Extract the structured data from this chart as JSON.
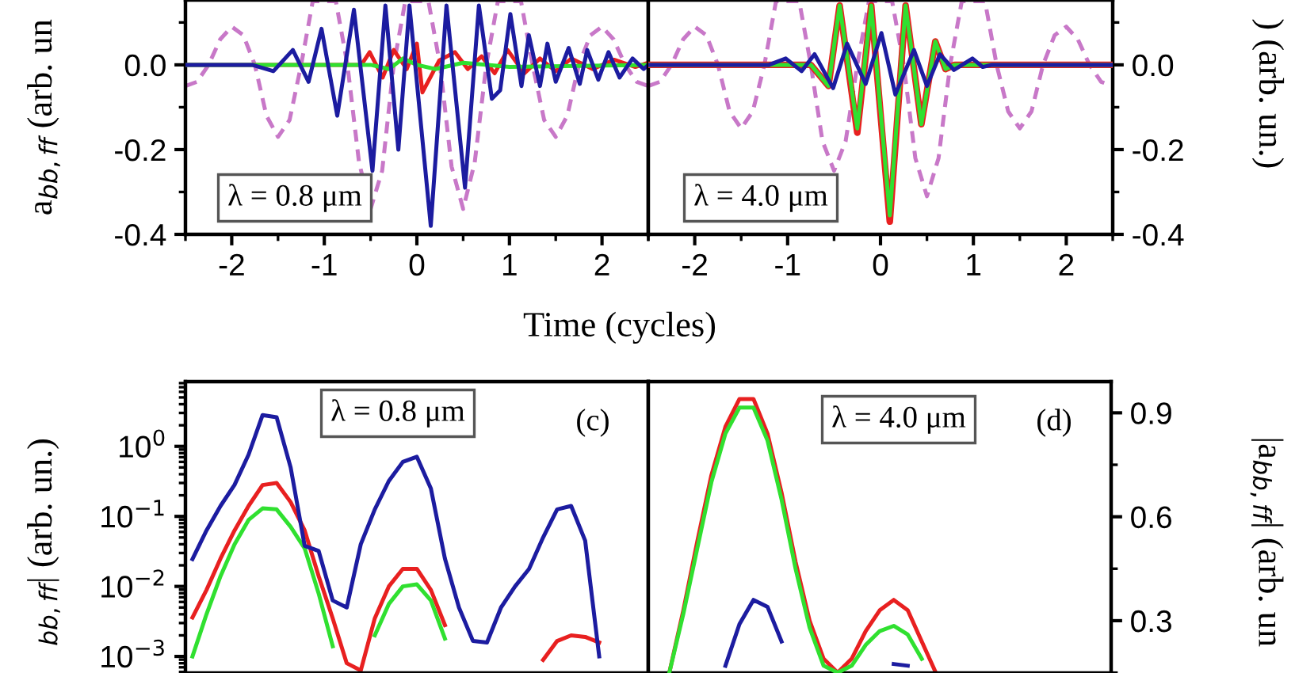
{
  "chart_data": [
    {
      "type": "line",
      "xlabel": "Time (cycles)",
      "ylabel": "a$_{bb,ff}$ (arb. un",
      "xlim": [
        -2.5,
        2.5
      ],
      "xticks": [
        -2,
        -1,
        0,
        1,
        2
      ],
      "ylim": [
        -0.4,
        0.153
      ],
      "yticks": [
        {
          "value": -0.4,
          "label": "-0.4"
        },
        {
          "value": -0.2,
          "label": "-0.2"
        },
        {
          "value": 0,
          "label": "0.0"
        }
      ],
      "annotations": [
        "λ = 0.8 μm"
      ],
      "x": [
        -2.5,
        -2.375,
        -2.25,
        -2.125,
        -2,
        -1.875,
        -1.75,
        -1.625,
        -1.5,
        -1.375,
        -1.25,
        -1.125,
        -1,
        -0.875,
        -0.75,
        -0.625,
        -0.5,
        -0.375,
        -0.25,
        -0.125,
        0,
        0.125,
        0.25,
        0.375,
        0.5,
        0.625,
        0.75,
        0.875,
        1,
        1.125,
        1.25,
        1.375,
        1.5,
        1.625,
        1.75,
        1.875,
        2,
        2.125,
        2.25,
        2.375,
        2.5
      ],
      "series": [
        {
          "color": "#c878c8",
          "line_style": "dashed",
          "values": [
            -0.05,
            -0.04,
            0,
            0.06,
            0.09,
            0.07,
            0,
            -0.12,
            -0.17,
            -0.13,
            0,
            0.15,
            0.15,
            0.15,
            0,
            -0.23,
            -0.34,
            -0.25,
            0,
            0.15,
            0.15,
            0.15,
            0,
            -0.24,
            -0.34,
            -0.23,
            0,
            0.15,
            0.15,
            0.15,
            0,
            -0.13,
            -0.17,
            -0.12,
            0,
            0.07,
            0.09,
            0.06,
            0,
            -0.04,
            -0.05
          ]
        },
        {
          "color": "#e82020",
          "x": [
            -2.5,
            -0.6,
            -0.51,
            -0.37,
            -0.25,
            -0.11,
            0,
            0.06,
            0.24,
            0.41,
            0.55,
            0.7,
            0.84,
            0.98,
            1.16,
            1.33,
            1.5,
            1.67,
            1.9,
            2.13,
            2.36,
            2.5
          ],
          "values": [
            0,
            0,
            0.03,
            -0.03,
            0.035,
            -0.01,
            0.05,
            -0.065,
            0.01,
            0.03,
            -0.01,
            0.02,
            -0.02,
            0.035,
            -0.02,
            0.015,
            -0.015,
            0.015,
            -0.01,
            0.012,
            -0.005,
            0.005
          ]
        },
        {
          "color": "#30e030",
          "x": [
            -2.5,
            -0.5,
            -0.3,
            -0.15,
            0,
            0.2,
            0.5,
            1,
            2.5
          ],
          "values": [
            0,
            0,
            -0.01,
            0.015,
            0,
            -0.01,
            0.005,
            -0.005,
            0
          ]
        },
        {
          "color": "#1c1ca0",
          "x": [
            -2.5,
            -1.78,
            -1.55,
            -1.34,
            -1.17,
            -1.03,
            -0.86,
            -0.68,
            -0.48,
            -0.34,
            -0.2,
            -0.08,
            0.15,
            0.32,
            0.52,
            0.67,
            0.81,
            0.9,
            1.01,
            1.13,
            1.21,
            1.33,
            1.41,
            1.5,
            1.64,
            1.76,
            1.84,
            1.96,
            2.07,
            2.19,
            2.33,
            2.45,
            2.5
          ],
          "values": [
            0,
            0,
            -0.015,
            0.035,
            -0.04,
            0.085,
            -0.12,
            0.13,
            -0.25,
            0.14,
            -0.2,
            0.14,
            -0.38,
            0.14,
            -0.29,
            0.14,
            -0.08,
            -0.06,
            0.12,
            -0.05,
            0.07,
            -0.05,
            0.05,
            -0.04,
            0.04,
            -0.045,
            0.035,
            -0.035,
            0.03,
            -0.03,
            0.015,
            -0.01,
            0
          ]
        }
      ]
    },
    {
      "type": "line",
      "ylabel": ") (arb. un.)",
      "xlim": [
        -2.5,
        2.5
      ],
      "xticks": [
        -2,
        -1,
        0,
        1,
        2
      ],
      "ylim": [
        -0.4,
        0.153
      ],
      "yticks": [
        {
          "value": -0.4,
          "label": "-0.4"
        },
        {
          "value": -0.2,
          "label": "-0.2"
        },
        {
          "value": 0,
          "label": "0.0"
        }
      ],
      "annotations": [
        "λ = 4.0 μm"
      ],
      "x": [
        -2.5,
        -2.375,
        -2.25,
        -2.125,
        -2,
        -1.875,
        -1.75,
        -1.625,
        -1.5,
        -1.375,
        -1.25,
        -1.125,
        -1,
        -0.875,
        -0.75,
        -0.625,
        -0.5,
        -0.375,
        -0.25,
        -0.125,
        0,
        0.125,
        0.25,
        0.375,
        0.5,
        0.625,
        0.75,
        0.875,
        1,
        1.125,
        1.25,
        1.375,
        1.5,
        1.625,
        1.75,
        1.875,
        2,
        2.125,
        2.25,
        2.375,
        2.5
      ],
      "series": [
        {
          "color": "#c878c8",
          "line_style": "dashed",
          "values": [
            -0.05,
            -0.04,
            0,
            0.06,
            0.09,
            0.07,
            0,
            -0.11,
            -0.15,
            -0.11,
            0,
            0.15,
            0.15,
            0.15,
            0,
            -0.18,
            -0.25,
            -0.18,
            0,
            0.15,
            0.15,
            0.15,
            0,
            -0.22,
            -0.31,
            -0.22,
            0,
            0.15,
            0.15,
            0.15,
            0,
            -0.11,
            -0.15,
            -0.11,
            0,
            0.07,
            0.09,
            0.06,
            0,
            -0.04,
            -0.05
          ]
        },
        {
          "color": "#e82020",
          "x": [
            -2.5,
            -0.75,
            -0.56,
            -0.44,
            -0.25,
            -0.1,
            0.1,
            0.27,
            0.44,
            0.59,
            0.7,
            0.8,
            2.5
          ],
          "values": [
            0,
            0,
            -0.05,
            0.14,
            -0.16,
            0.14,
            -0.37,
            0.14,
            -0.14,
            0.055,
            -0.01,
            0,
            0
          ]
        },
        {
          "color": "#30e030",
          "x": [
            -2.5,
            -0.75,
            -0.56,
            -0.44,
            -0.25,
            -0.1,
            0.1,
            0.27,
            0.44,
            0.59,
            0.7,
            0.8,
            2.5
          ],
          "values": [
            0,
            0,
            -0.05,
            0.14,
            -0.15,
            0.14,
            -0.355,
            0.14,
            -0.14,
            0.055,
            -0.01,
            0,
            0
          ]
        },
        {
          "color": "#1c1ca0",
          "x": [
            -2.5,
            -1.2,
            -1.02,
            -0.85,
            -0.71,
            -0.51,
            -0.36,
            -0.16,
            0.01,
            0.16,
            0.36,
            0.5,
            0.64,
            0.79,
            0.99,
            1.1,
            1.2,
            2.5
          ],
          "values": [
            0,
            0,
            0.015,
            -0.015,
            0.025,
            -0.055,
            0.05,
            -0.045,
            0.075,
            -0.07,
            0.035,
            -0.05,
            0.025,
            -0.012,
            0.015,
            -0.005,
            0,
            0
          ]
        }
      ]
    },
    {
      "type": "line",
      "log": true,
      "tick_labels": "y",
      "ylabel": "$_{bb,ff}$| (arb. un.)",
      "ylim": [
        0.00058,
        8.4
      ],
      "yticks": [
        {
          "value": 0.001,
          "label": "10$^{−3}$"
        },
        {
          "value": 0.01,
          "label": "10$^{−2}$"
        },
        {
          "value": 0.1,
          "label": "10$^{−1}$"
        },
        {
          "value": 1,
          "label": "10$^{0}$"
        }
      ],
      "annotations": [
        "λ = 0.8 μm",
        "(c)"
      ],
      "categories": [
        null,
        null,
        null,
        null,
        null,
        null,
        null,
        null,
        null,
        null,
        null,
        null,
        null,
        null,
        null,
        null,
        null,
        null,
        null,
        null,
        null,
        null,
        null,
        null,
        null,
        null,
        null,
        null,
        null,
        null
      ],
      "series": [
        {
          "color": "#e82020",
          "values": [
            0.0036,
            0.0089,
            0.025,
            0.063,
            0.141,
            0.28,
            0.3,
            0.16,
            0.063,
            0.014,
            0.0035,
            0.0008,
            0.00063,
            0.0035,
            0.01,
            0.0178,
            0.0178,
            0.0089,
            0.0028,
            null,
            null,
            null,
            null,
            null,
            null,
            0.00089,
            0.00166,
            0.002,
            0.0019,
            0.00158
          ]
        },
        {
          "color": "#30e030",
          "values": [
            0.001,
            0.004,
            0.014,
            0.04,
            0.089,
            0.13,
            0.126,
            0.071,
            0.035,
            0.0079,
            0.0014,
            null,
            null,
            0.002,
            0.0056,
            0.01,
            0.0107,
            0.0063,
            0.0018,
            null,
            null,
            null,
            null,
            null,
            null,
            null,
            null,
            null,
            null,
            null
          ]
        },
        {
          "color": "#1c1ca0",
          "values": [
            0.0245,
            0.063,
            0.141,
            0.282,
            0.76,
            2.8,
            2.6,
            0.5,
            0.038,
            0.032,
            0.0063,
            0.005,
            0.04,
            0.126,
            0.32,
            0.6,
            0.71,
            0.25,
            0.025,
            0.005,
            0.00166,
            0.00158,
            0.005,
            0.01,
            0.0178,
            0.05,
            0.126,
            0.141,
            0.045,
            0.001
          ]
        }
      ]
    },
    {
      "type": "line",
      "tick_labels": "y",
      "ylabel": "|a$_{bb,ff}$| (arb. un",
      "ylim": [
        0.149,
        0.99
      ],
      "yticks": [
        {
          "value": 0.3,
          "label": "0.3"
        },
        {
          "value": 0.6,
          "label": "0.6"
        },
        {
          "value": 0.9,
          "label": "0.9"
        }
      ],
      "annotations": [
        "λ = 4.0 μm",
        "(d)"
      ],
      "categories": [
        null,
        null,
        null,
        null,
        null,
        null,
        null,
        null,
        null,
        null,
        null,
        null,
        null,
        null,
        null,
        null,
        null,
        null,
        null,
        null
      ],
      "series": [
        {
          "color": "#e82020",
          "values": [
            0.15,
            0.33,
            0.53,
            0.72,
            0.86,
            0.94,
            0.94,
            0.84,
            0.67,
            0.47,
            0.3,
            0.19,
            0.15,
            0.19,
            0.27,
            0.33,
            0.36,
            0.33,
            0.24,
            0.15
          ]
        },
        {
          "color": "#30e030",
          "values": [
            0.15,
            0.32,
            0.51,
            0.7,
            0.84,
            0.915,
            0.915,
            0.82,
            0.65,
            0.45,
            0.28,
            0.17,
            0.15,
            0.17,
            0.23,
            0.27,
            0.285,
            0.26,
            0.19,
            null
          ]
        },
        {
          "color": "#1c1ca0",
          "values": [
            null,
            null,
            null,
            null,
            0.17,
            0.29,
            0.36,
            0.34,
            0.24,
            null,
            null,
            null,
            null,
            null,
            null,
            null,
            0.175,
            0.17,
            null,
            null
          ]
        }
      ]
    }
  ]
}
